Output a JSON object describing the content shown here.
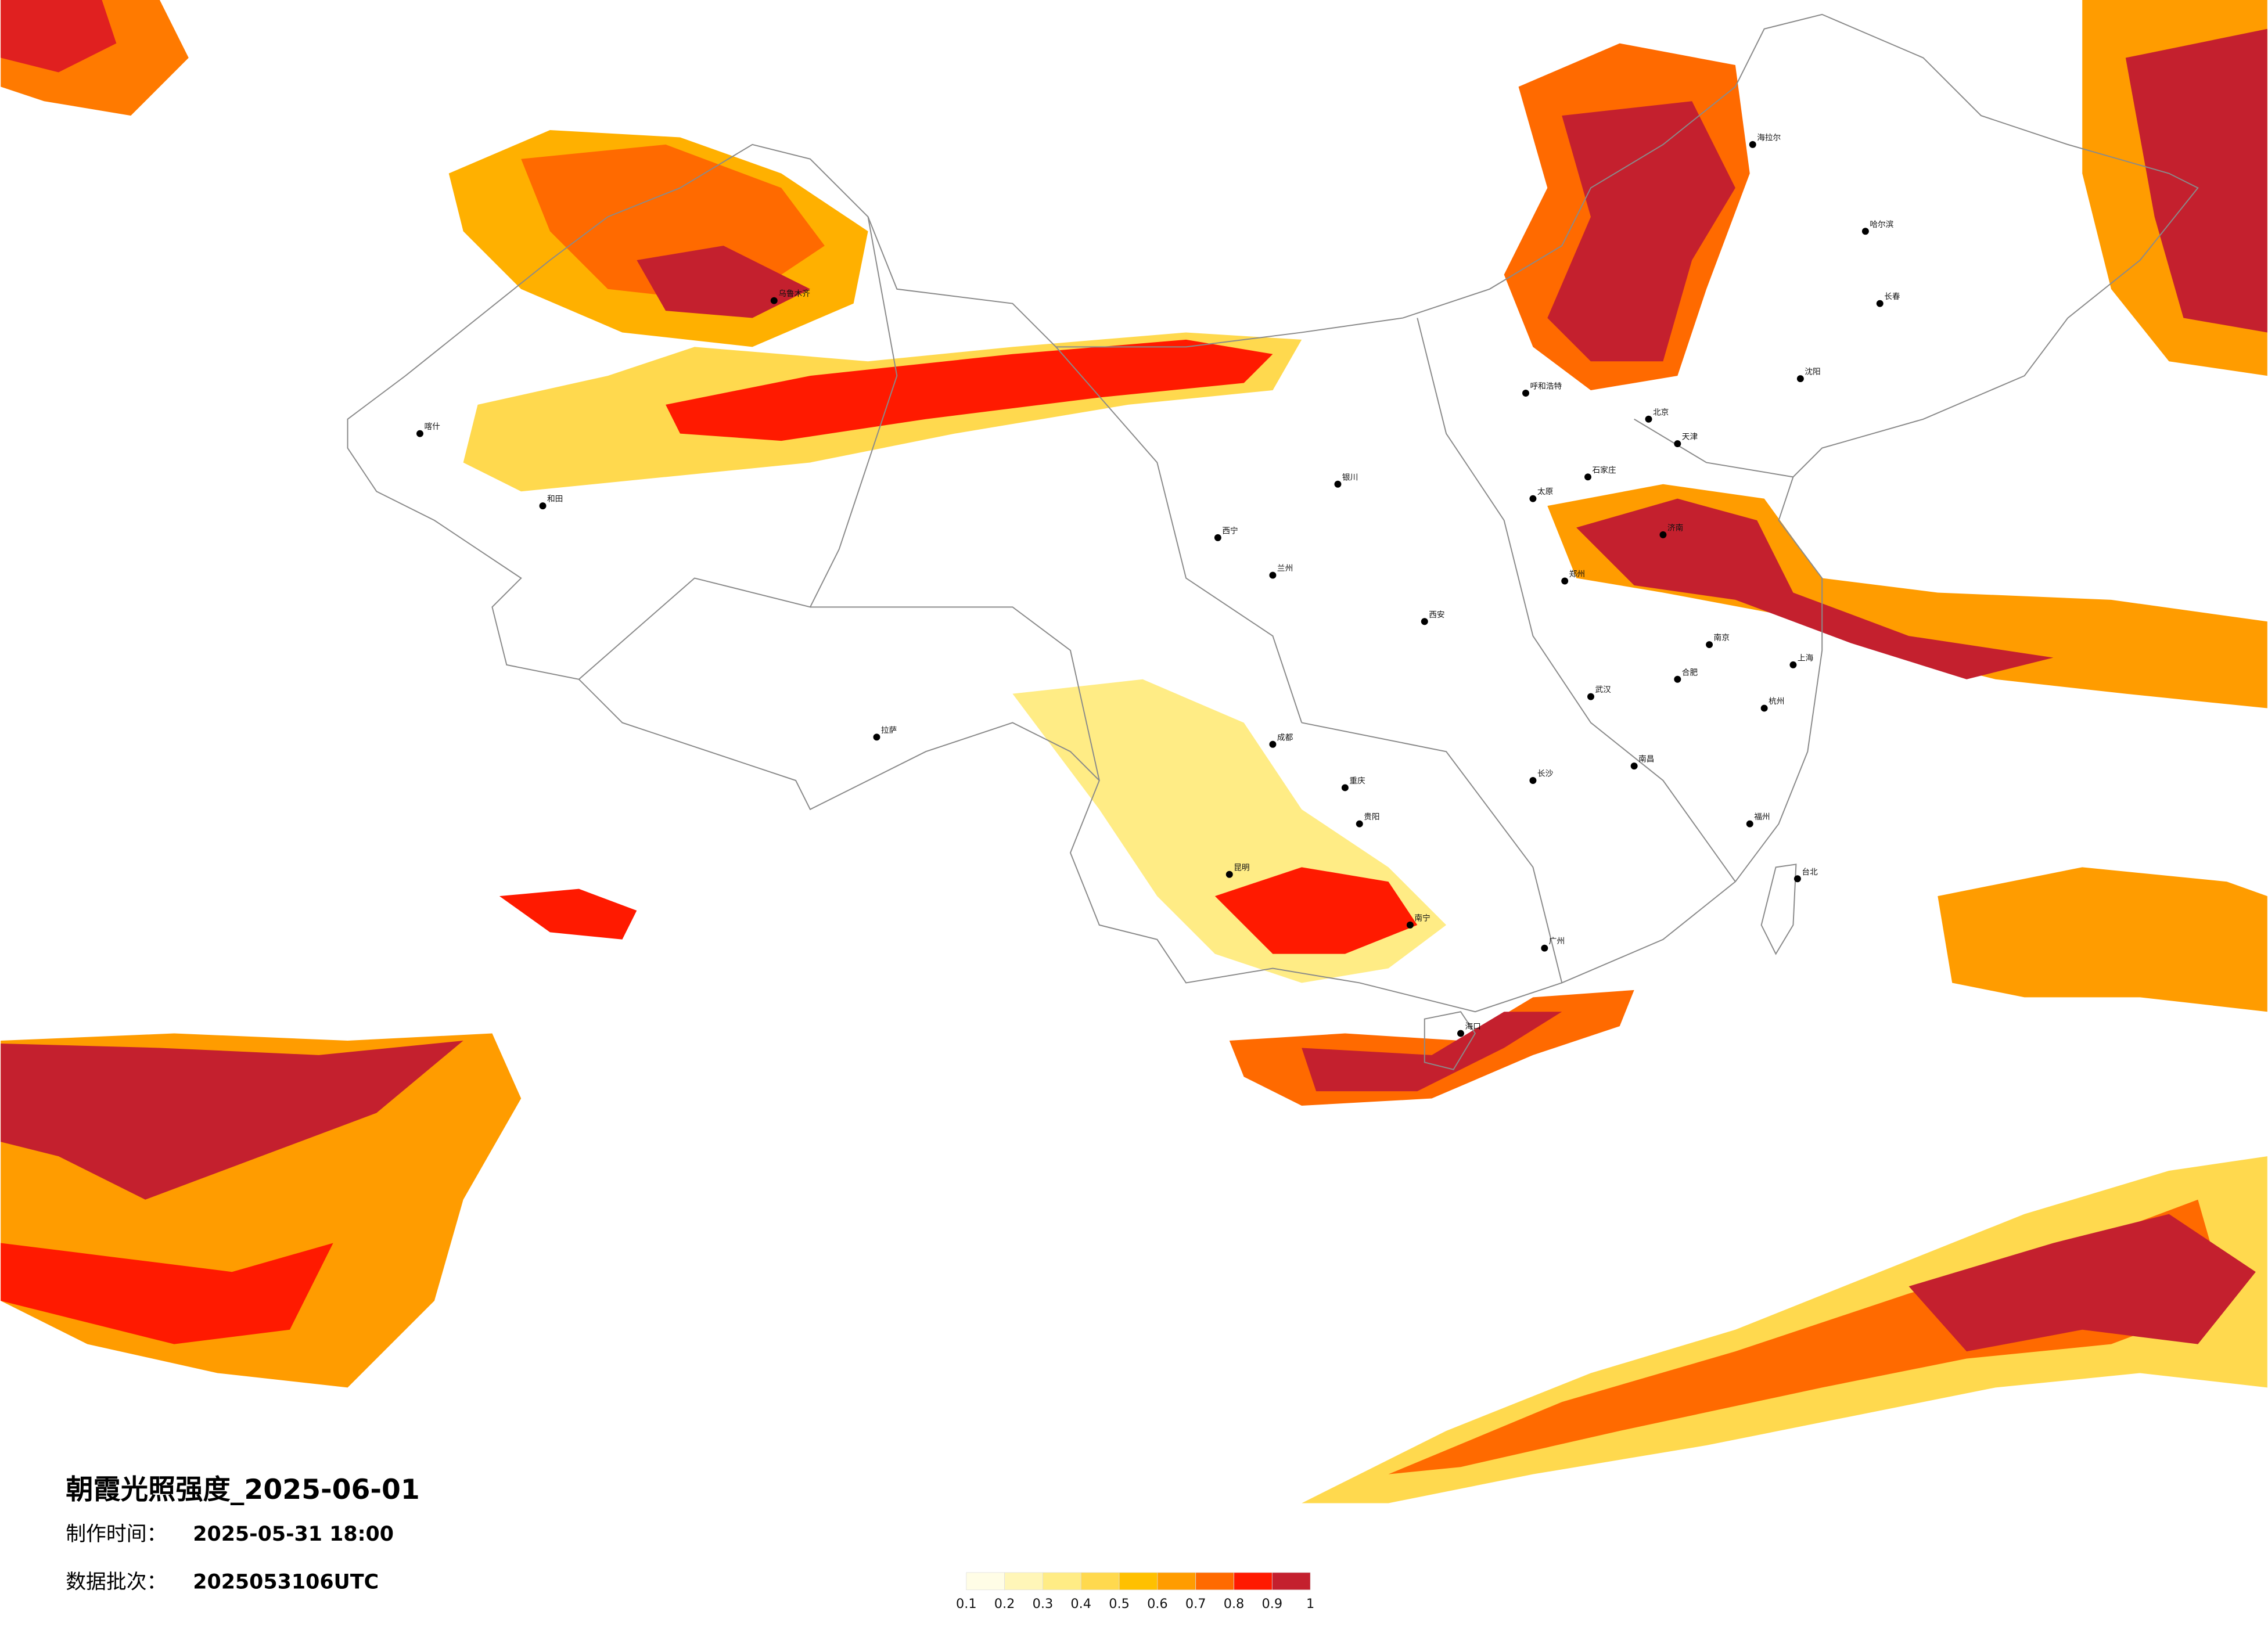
{
  "title": "朝霞光照强度_2025-06-01",
  "made_label": "制作时间：",
  "made_time": "2025-05-31 18:00",
  "batch_label": "数据批次：",
  "batch": "2025053106UTC",
  "legend": {
    "ticks": [
      0.1,
      0.2,
      0.3,
      0.4,
      0.5,
      0.6,
      0.7,
      0.8,
      0.9,
      1
    ],
    "colors": [
      "#fffde6",
      "#fff6b8",
      "#ffec85",
      "#ffd94e",
      "#ffc000",
      "#ff9c00",
      "#ff6a00",
      "#ff1a00",
      "#c4202e"
    ]
  },
  "cities": [
    "海拉尔",
    "哈尔滨",
    "长春",
    "沈阳",
    "北京",
    "天津",
    "呼和浩特",
    "石家庄",
    "太原",
    "济南",
    "郑州",
    "银川",
    "兰州",
    "西宁",
    "西安",
    "乌鲁木齐",
    "喀什",
    "和田",
    "拉萨",
    "成都",
    "重庆",
    "贵阳",
    "昆明",
    "南宁",
    "广州",
    "海口",
    "长沙",
    "武汉",
    "南昌",
    "合肥",
    "南京",
    "上海",
    "杭州",
    "福州",
    "台北"
  ]
}
